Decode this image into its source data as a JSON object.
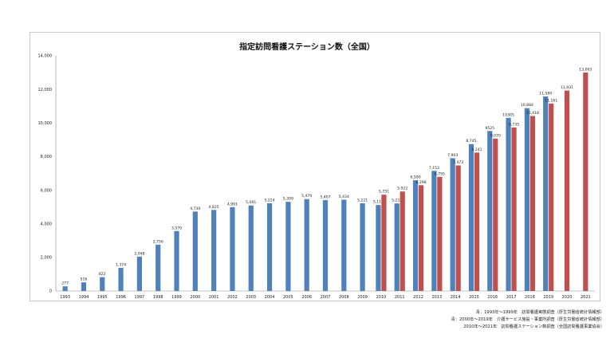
{
  "chart_data": {
    "type": "bar",
    "title": "指定訪問看護ステーション数（全国）",
    "ylim": [
      0,
      14000
    ],
    "y_ticks": [
      "0",
      "2,000",
      "4,000",
      "6,000",
      "8,000",
      "10,000",
      "12,000",
      "14,000"
    ],
    "grid": false,
    "categories": [
      "1993",
      "1994",
      "1995",
      "1996",
      "1997",
      "1998",
      "1999",
      "2000",
      "2001",
      "2002",
      "2003",
      "2004",
      "2005",
      "2006",
      "2007",
      "2008",
      "2009",
      "2010",
      "2011",
      "2012",
      "2013",
      "2014",
      "2015",
      "2016",
      "2017",
      "2018",
      "2019",
      "2020",
      "2021"
    ],
    "colors": {
      "blue": "#4f81bd",
      "red": "#c0504d"
    },
    "series": [
      {
        "color": "#4f81bd",
        "values": [
          277,
          516,
          822,
          1374,
          2048,
          2756,
          3570,
          4730,
          4825,
          4991,
          5091,
          5224,
          5309,
          5470,
          5407,
          5434,
          5221,
          5119,
          5212,
          6590,
          7153,
          7903,
          8745,
          9525,
          10305,
          10884,
          11580,
          null,
          null
        ],
        "labels": [
          "277",
          "516",
          "822",
          "1,374",
          "2,048",
          "2,756",
          "3,570",
          "4,730",
          "4,825",
          "4,991",
          "5,091",
          "5,224",
          "5,309",
          "5,470",
          "5,407",
          "5,434",
          "5,221",
          "5,119",
          "5,212",
          "6,590",
          "7,153",
          "7,903",
          "8,745",
          "9525",
          "10305",
          "10,884",
          "11,580",
          "",
          ""
        ]
      },
      {
        "color": "#c0504d",
        "values": [
          null,
          null,
          null,
          null,
          null,
          null,
          null,
          null,
          null,
          null,
          null,
          null,
          null,
          null,
          null,
          null,
          null,
          5731,
          5922,
          6298,
          6795,
          7473,
          8241,
          9070,
          9735,
          10418,
          11161,
          11931,
          13003
        ],
        "labels": [
          "",
          "",
          "",
          "",
          "",
          "",
          "",
          "",
          "",
          "",
          "",
          "",
          "",
          "",
          "",
          "",
          "",
          "5,731",
          "5,922",
          "6,298",
          "6,795",
          "7,473",
          "8,241",
          "9,070",
          "9,735",
          "10,418",
          "11,161",
          "11,931",
          "13,003"
        ]
      }
    ]
  },
  "sources": [
    "青：1993年～1999年　訪問看護実態調査（厚生労働省統計情報部）",
    "青：2000年～2019年　介護サービス施設・事業所調査（厚生労働省統計情報部）",
    "2010年～2021年　訪問看護ステーション数調査（全国訪問看護事業協会）"
  ]
}
